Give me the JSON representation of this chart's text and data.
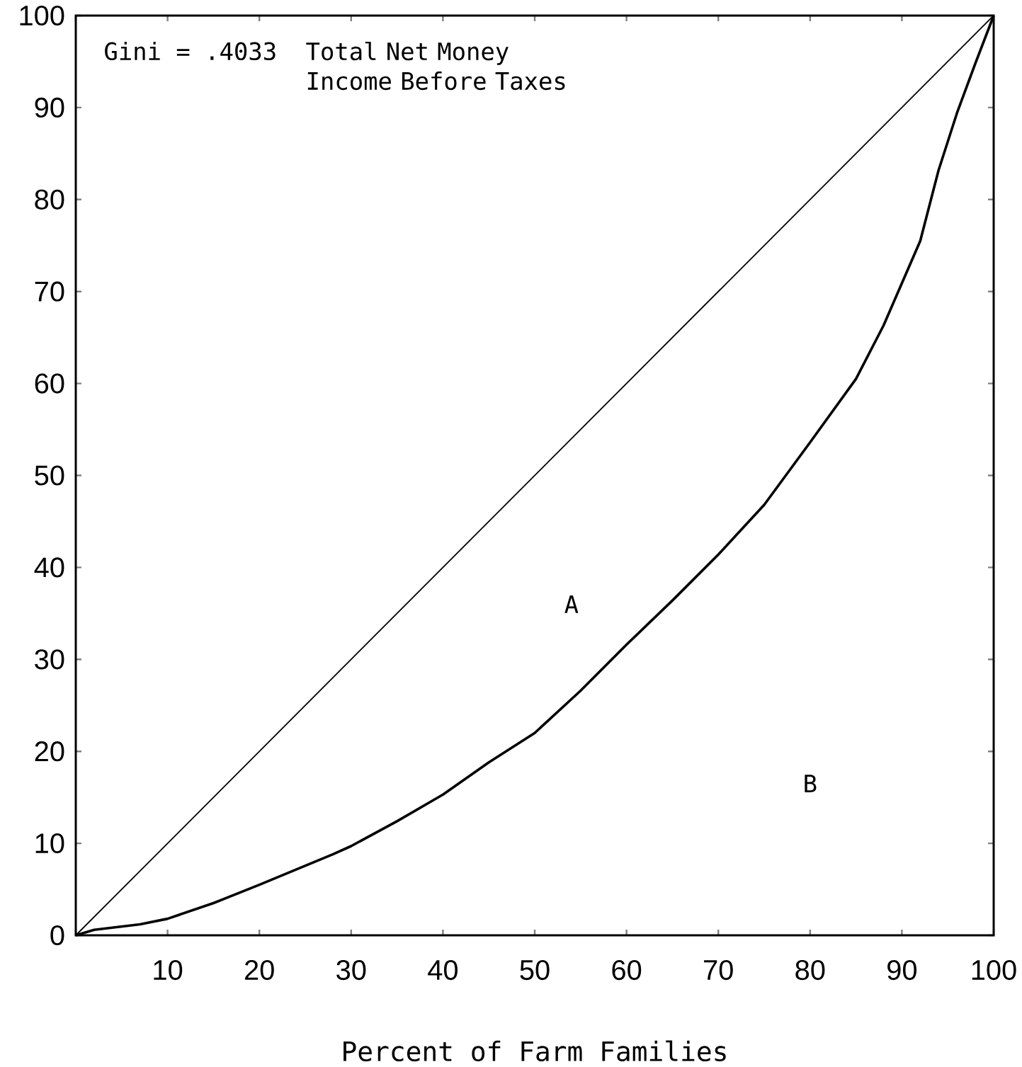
{
  "chart_data": {
    "type": "line",
    "title": "Total Net Money Income Before Taxes",
    "xlabel": "Percent of Farm Families",
    "xlim": [
      0,
      100
    ],
    "ylim": [
      0,
      100
    ],
    "xticks": [
      {
        "value": 0,
        "label": null
      },
      10,
      20,
      30,
      40,
      50,
      60,
      70,
      80,
      90,
      100
    ],
    "yticks": [
      0,
      10,
      20,
      30,
      40,
      50,
      60,
      70,
      80,
      90,
      100
    ],
    "series": [
      {
        "x": [
          0,
          100
        ],
        "values": [
          0,
          100
        ],
        "color": "#000000"
      },
      {
        "x": [
          0,
          2,
          7,
          10,
          15,
          20,
          28,
          30,
          35,
          40,
          45,
          50,
          55,
          60,
          65,
          70,
          75,
          80,
          85,
          88,
          90,
          92,
          94,
          96,
          98,
          100
        ],
        "values": [
          0,
          0.6,
          1.2,
          1.8,
          3.5,
          5.5,
          8.8,
          9.7,
          12.4,
          15.3,
          18.8,
          22,
          26.6,
          31.6,
          36.4,
          41.4,
          46.8,
          53.6,
          60.5,
          66.3,
          70.9,
          75.5,
          83.2,
          89.4,
          94.8,
          100
        ],
        "color": "#000000"
      }
    ],
    "annotations": [
      "Gini = .4033",
      "A",
      "B"
    ]
  }
}
